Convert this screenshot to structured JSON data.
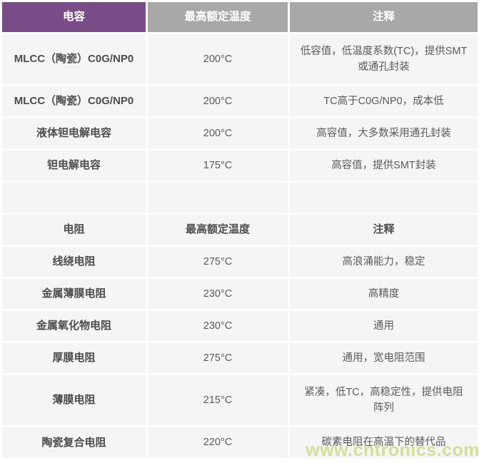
{
  "watermark": "www.cntronics.com",
  "colors": {
    "header_purple": "#7a4c87",
    "header_gray": "#a8a8a8",
    "row_background": "#f5f5f5",
    "name_text": "#4d4d4d",
    "note_text": "#5a5a5a",
    "watermark_text": "#d3df97"
  },
  "capacitor_table": {
    "header": {
      "col1": "电容",
      "col2": "最高额定温度",
      "col3": "注释"
    },
    "rows": [
      {
        "name": "MLCC（陶瓷）C0G/NP0",
        "temp": "200°C",
        "note": "低容值，低温度系数(TC)，提供SMT或通孔封装"
      },
      {
        "name": "MLCC（陶瓷）C0G/NP0",
        "temp": "200°C",
        "note": "TC高于C0G/NP0，成本低"
      },
      {
        "name": "液体钽电解电容",
        "temp": "200°C",
        "note": "高容值，大多数采用通孔封装"
      },
      {
        "name": "钽电解电容",
        "temp": "175°C",
        "note": "高容值，提供SMT封装"
      }
    ]
  },
  "resistor_table": {
    "header": {
      "col1": "电阻",
      "col2": "最高额定温度",
      "col3": "注释"
    },
    "rows": [
      {
        "name": "线绕电阻",
        "temp": "275°C",
        "note": "高浪涌能力，稳定"
      },
      {
        "name": "金属薄膜电阻",
        "temp": "230°C",
        "note": "高精度"
      },
      {
        "name": "金属氧化物电阻",
        "temp": "230°C",
        "note": "通用"
      },
      {
        "name": "厚膜电阻",
        "temp": "275°C",
        "note": "通用，宽电阻范围"
      },
      {
        "name": "薄膜电阻",
        "temp": "215°C",
        "note": "紧凑，低TC，高稳定性，提供电阻阵列"
      },
      {
        "name": "陶瓷复合电阻",
        "temp": "220°C",
        "note": "碳素电阻在高温下的替代品"
      }
    ]
  }
}
